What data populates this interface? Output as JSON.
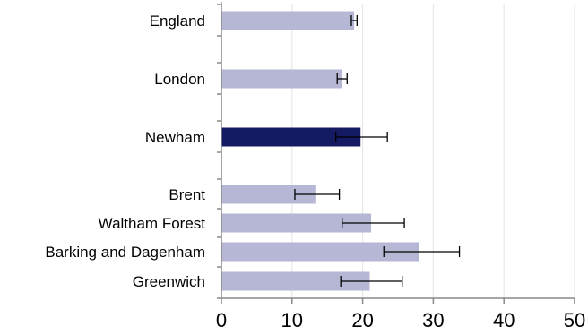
{
  "chart_data": {
    "type": "bar",
    "orientation": "horizontal",
    "title": "",
    "xlabel": "",
    "ylabel": "",
    "xlim": [
      0,
      50
    ],
    "x_ticks": [
      "0",
      "10",
      "20",
      "30",
      "40",
      "50"
    ],
    "grid": "vertical",
    "legend": "none",
    "categories": [
      {
        "label": "England",
        "value": 18.8,
        "err_low": 18.4,
        "err_high": 19.2,
        "highlight": false
      },
      {
        "label": "London",
        "value": 17.1,
        "err_low": 16.4,
        "err_high": 17.8,
        "highlight": false
      },
      {
        "label": "Newham",
        "value": 19.7,
        "err_low": 16.2,
        "err_high": 23.5,
        "highlight": true
      },
      {
        "label": "Brent",
        "value": 13.3,
        "err_low": 10.4,
        "err_high": 16.7,
        "highlight": false
      },
      {
        "label": "Waltham Forest",
        "value": 21.2,
        "err_low": 17.1,
        "err_high": 25.9,
        "highlight": false
      },
      {
        "label": "Barking and Dagenham",
        "value": 28.0,
        "err_low": 23.0,
        "err_high": 33.7,
        "highlight": false
      },
      {
        "label": "Greenwich",
        "value": 21.0,
        "err_low": 16.9,
        "err_high": 25.6,
        "highlight": false
      }
    ],
    "colors": {
      "bar": "#b6b6d5",
      "highlight": "#141b63",
      "error_bar": "#000000",
      "axis": "#888888",
      "grid": "#e3e3e3"
    }
  }
}
